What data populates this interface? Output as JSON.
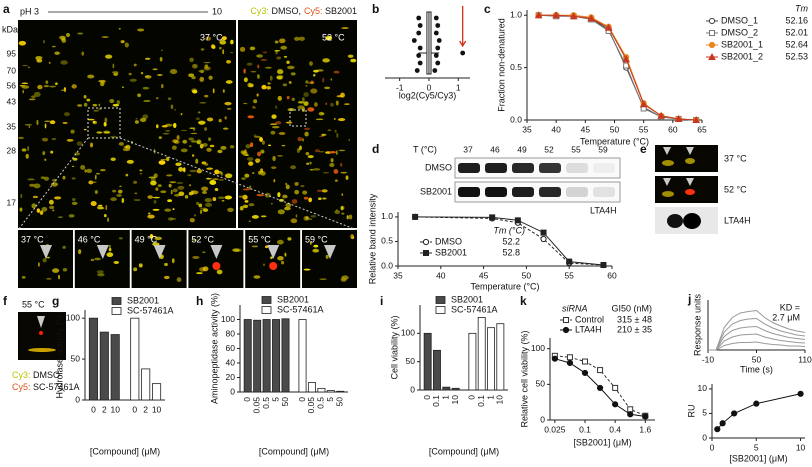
{
  "figure": {
    "panel_letters": [
      "a",
      "b",
      "c",
      "d",
      "e",
      "f",
      "g",
      "h",
      "i",
      "j",
      "k"
    ],
    "gel": {
      "ph_start": "pH 3",
      "ph_end": "10",
      "cy3": "Cy3:",
      "cy3_sample": " DMSO,",
      "cy5": "Cy5:",
      "cy5_sample": " SB2001",
      "kda": "kDa",
      "markers": [
        95,
        70,
        56,
        43,
        35,
        28,
        17
      ],
      "temps": [
        "37 °C",
        "52 °C"
      ],
      "inset_temps": [
        "37 °C",
        "46 °C",
        "49 °C",
        "52 °C",
        "55 °C",
        "59 °C"
      ]
    },
    "blot": {
      "t_label": "T (°C)",
      "temps": [
        37,
        46,
        49,
        52,
        55,
        59
      ],
      "rows": [
        "DMSO",
        "SB2001"
      ],
      "protein": "LTA4H"
    },
    "e": {
      "temps": [
        "37 °C",
        "52 °C"
      ],
      "protein": "LTA4H"
    },
    "f": {
      "temp": "55 °C",
      "cy3": "Cy3:",
      "cy3_sample": " DMSO",
      "cy5": "Cy5:",
      "cy5_sample": " SC-57461A"
    }
  },
  "chart_data": [
    {
      "type": "dot",
      "values": [
        -0.35,
        -0.3,
        -0.35,
        -0.5,
        -0.3,
        -0.35,
        -0.3,
        -0.4,
        0.25,
        0.3,
        0.25,
        0.35,
        0.3,
        0.25,
        0.3,
        0.2,
        1.15
      ],
      "box": {
        "q1": -0.07,
        "median": 0,
        "q3": 0.07,
        "whiskers": [
          -0.35,
          0.35
        ]
      },
      "xlim": [
        -1.5,
        1.4
      ],
      "xticks": [
        -1,
        0,
        1
      ],
      "xlabel": "log2(Cy5/Cy3)"
    },
    {
      "type": "line",
      "x": [
        37,
        40,
        43,
        46,
        49,
        52,
        55,
        58,
        61,
        64
      ],
      "xlim": [
        35,
        65
      ],
      "xticks": [
        35,
        40,
        45,
        50,
        55,
        60,
        65
      ],
      "ylim": [
        0,
        1.05
      ],
      "yticks": [
        {
          "value": 0,
          "label": "0.0"
        },
        {
          "value": 0.5,
          "label": "0.5"
        },
        {
          "value": 1,
          "label": "1.0"
        }
      ],
      "xlabel": "Temperature (°C)",
      "ylabel": "Fraction non-denatured",
      "legend_title": "Tm",
      "series": [
        {
          "name": "DMSO_1",
          "color": "#444444",
          "marker": "circle-open",
          "tm": 52.16,
          "values": [
            1,
            1,
            0.99,
            0.97,
            0.86,
            0.5,
            0.12,
            0.03,
            0.01,
            0
          ]
        },
        {
          "name": "DMSO_2",
          "color": "#777777",
          "marker": "square-open",
          "tm": 52.01,
          "values": [
            1,
            0.99,
            0.99,
            0.96,
            0.85,
            0.52,
            0.11,
            0.03,
            0.01,
            0
          ]
        },
        {
          "name": "SB2001_1",
          "color": "#e8871e",
          "marker": "circle",
          "tm": 52.64,
          "values": [
            1,
            1,
            1,
            0.98,
            0.89,
            0.6,
            0.16,
            0.04,
            0.01,
            0
          ]
        },
        {
          "name": "SB2001_2",
          "color": "#c8381e",
          "marker": "triangle",
          "tm": 52.53,
          "values": [
            1,
            1,
            0.99,
            0.97,
            0.88,
            0.58,
            0.15,
            0.04,
            0.01,
            0
          ]
        }
      ]
    },
    {
      "type": "line",
      "x": [
        37,
        46,
        49,
        52,
        55,
        59
      ],
      "xlim": [
        35,
        60
      ],
      "xticks": [
        35,
        40,
        45,
        50,
        55,
        60
      ],
      "ylim": [
        0,
        1.1
      ],
      "yticks": [
        {
          "value": 0,
          "label": "0.0"
        },
        {
          "value": 0.5,
          "label": "0.5"
        },
        {
          "value": 1,
          "label": "1.0"
        }
      ],
      "xlabel": "Temperature (°C)",
      "ylabel": "Relative band intensity",
      "legend_title": "Tm (°C)",
      "series": [
        {
          "name": "DMSO",
          "color": "#222222",
          "marker": "circle-open",
          "line_style": "dashed",
          "tm": 52.2,
          "values": [
            1,
            0.97,
            0.88,
            0.55,
            0.06,
            0.02
          ]
        },
        {
          "name": "SB2001",
          "color": "#222222",
          "marker": "square",
          "tm": 52.8,
          "values": [
            1,
            0.99,
            0.93,
            0.68,
            0.09,
            0.02
          ]
        }
      ]
    },
    {
      "type": "bar",
      "categories": [
        "0",
        "2",
        "10",
        "0",
        "2",
        "10"
      ],
      "ylim": [
        0,
        110
      ],
      "yticks": [
        0,
        50,
        100
      ],
      "ylabel": "Hydrolase activity (%)",
      "xlabel": "[Compound] (μM)",
      "series": [
        {
          "name": "SB2001",
          "color": "#4a4a4a",
          "values": [
            100,
            83,
            80,
            null,
            null,
            null
          ]
        },
        {
          "name": "SC-57461A",
          "color": "#ffffff",
          "values": [
            null,
            null,
            null,
            100,
            38,
            20
          ]
        }
      ]
    },
    {
      "type": "bar",
      "categories": [
        "0",
        "0.05",
        "0.5",
        "5",
        "50",
        "0",
        "0.05",
        "0.5",
        "5",
        "50"
      ],
      "ylim": [
        0,
        120
      ],
      "yticks": [
        0,
        20,
        40,
        60,
        80,
        100
      ],
      "ylabel": "Aminopeptidase activity (%)",
      "xlabel": "[Compound] (μM)",
      "series": [
        {
          "name": "SB2001",
          "color": "#4a4a4a",
          "values": [
            100,
            99,
            100,
            100,
            101,
            null,
            null,
            null,
            null,
            null
          ]
        },
        {
          "name": "SC-57461A",
          "color": "#ffffff",
          "values": [
            null,
            null,
            null,
            null,
            null,
            100,
            13,
            5,
            2,
            1
          ]
        }
      ]
    },
    {
      "type": "bar",
      "categories": [
        "0",
        "0.1",
        "1",
        "10",
        "0",
        "0.1",
        "1",
        "10"
      ],
      "ylim": [
        0,
        150
      ],
      "yticks": [
        0,
        50,
        100
      ],
      "ylabel": "Cell viability (%)",
      "xlabel": "[Compound] (μM)",
      "series": [
        {
          "name": "SB2001",
          "color": "#4a4a4a",
          "values": [
            100,
            70,
            5,
            3,
            null,
            null,
            null,
            null
          ]
        },
        {
          "name": "SC-57461A",
          "color": "#ffffff",
          "values": [
            null,
            null,
            null,
            null,
            100,
            128,
            110,
            117
          ]
        }
      ]
    },
    {
      "type": "line",
      "log_x": true,
      "x": [
        0.025,
        0.05,
        0.1,
        0.2,
        0.4,
        0.8,
        1.6
      ],
      "xlim": [
        0.02,
        2.5
      ],
      "xticks": [
        0.025,
        0.1,
        0.4,
        1.6
      ],
      "ylim": [
        0,
        115
      ],
      "yticks": [
        0,
        50,
        100
      ],
      "ylabel": "Relative cell viability (%)",
      "xlabel": "[SB2001] (μM)",
      "legend_title": "siRNA",
      "value_title": "GI50 (nM)",
      "series": [
        {
          "name": "Control",
          "color": "#333333",
          "marker": "square-open",
          "line_style": "dashed",
          "gi50": "315 ± 48",
          "values": [
            90,
            88,
            82,
            70,
            45,
            15,
            6
          ]
        },
        {
          "name": "LTA4H",
          "color": "#111111",
          "marker": "circle",
          "gi50": "210 ± 35",
          "values": [
            86,
            80,
            66,
            45,
            22,
            8,
            5
          ]
        }
      ]
    },
    {
      "type": "line",
      "x": [
        -10,
        0,
        10,
        20,
        30,
        40,
        50,
        60,
        70,
        80,
        90,
        100,
        110
      ],
      "xlim": [
        -10,
        110
      ],
      "xticks": [
        -10,
        50,
        110
      ],
      "ylim": [
        0,
        100
      ],
      "ylabel": "Response units",
      "xlabel": "Time (s)",
      "annotations": [
        "KD =",
        "2.7 μM"
      ],
      "series": [
        {
          "color": "#999999",
          "values": [
            0,
            0,
            45,
            65,
            74,
            77,
            79,
            65,
            55,
            48,
            42,
            38,
            35
          ]
        },
        {
          "color": "#999999",
          "values": [
            0,
            0,
            36,
            52,
            59,
            62,
            63,
            52,
            44,
            38,
            34,
            30,
            28
          ]
        },
        {
          "color": "#999999",
          "values": [
            0,
            0,
            27,
            39,
            44,
            46,
            47,
            39,
            33,
            29,
            25,
            23,
            21
          ]
        },
        {
          "color": "#999999",
          "values": [
            0,
            0,
            18,
            26,
            30,
            31,
            32,
            26,
            22,
            19,
            17,
            15,
            14
          ]
        },
        {
          "color": "#999999",
          "values": [
            0,
            0,
            9,
            13,
            15,
            15,
            16,
            13,
            11,
            10,
            8,
            8,
            7
          ]
        }
      ]
    },
    {
      "type": "line",
      "x": [
        0.6,
        1.2,
        2.5,
        5,
        10
      ],
      "xlim": [
        0,
        10.5
      ],
      "xticks": [
        0,
        5,
        10
      ],
      "ylim": [
        0,
        11
      ],
      "yticks": [
        0,
        5,
        10
      ],
      "ylabel": "RU",
      "xlabel": "[SB2001] (μM)",
      "series": [
        {
          "color": "#111111",
          "marker": "circle",
          "values": [
            1.8,
            3,
            5,
            7,
            9
          ]
        }
      ]
    }
  ]
}
